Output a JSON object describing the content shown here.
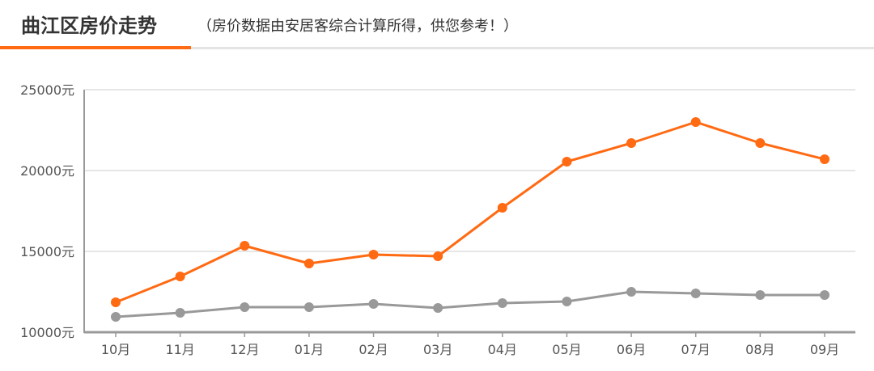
{
  "header": {
    "title": "曲江区房价走势",
    "subtitle": "（房价数据由安居客综合计算所得，供您参考！）"
  },
  "colors": {
    "accent": "#ff6a13",
    "series_primary": "#ff6a13",
    "series_secondary": "#999999",
    "grid": "#dddddd",
    "axis": "#999999"
  },
  "chart_data": {
    "type": "line",
    "title": "",
    "xlabel": "",
    "ylabel": "",
    "categories": [
      "10月",
      "11月",
      "12月",
      "01月",
      "02月",
      "03月",
      "04月",
      "05月",
      "06月",
      "07月",
      "08月",
      "09月"
    ],
    "y_ticks": [
      "10000元",
      "15000元",
      "20000元",
      "25000元"
    ],
    "ylim": [
      10000,
      25000
    ],
    "grid": true,
    "legend": "none",
    "series": [
      {
        "color": "#ff6a13",
        "values": [
          11850,
          13450,
          15350,
          14250,
          14800,
          14700,
          17700,
          20550,
          21700,
          23000,
          21700,
          20700
        ]
      },
      {
        "color": "#999999",
        "values": [
          10950,
          11200,
          11550,
          11550,
          11750,
          11500,
          11800,
          11900,
          12500,
          12400,
          12300,
          12300
        ]
      }
    ]
  }
}
